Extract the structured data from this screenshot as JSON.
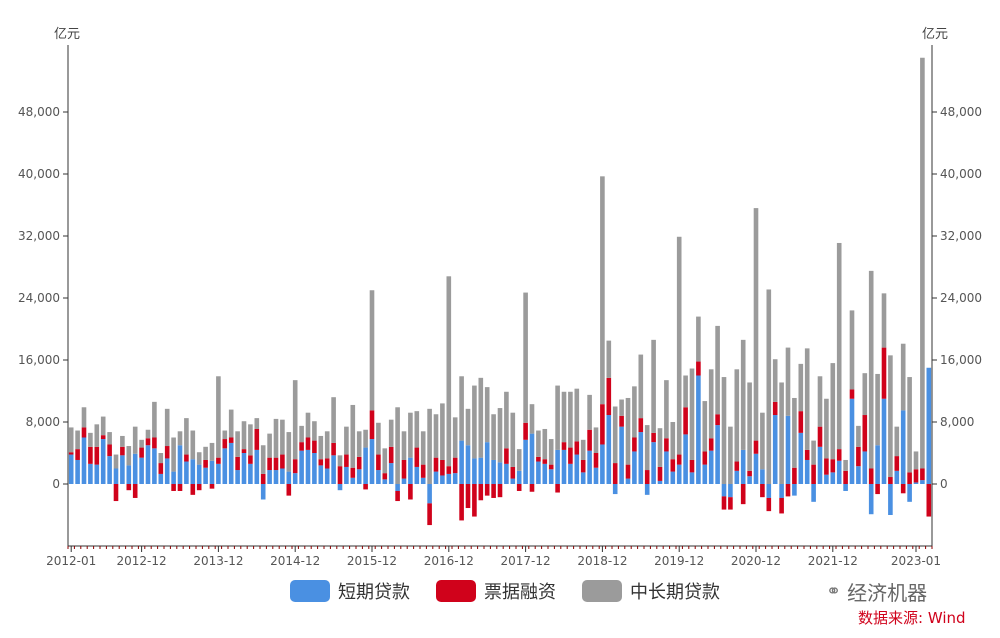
{
  "chart_data": {
    "type": "bar",
    "stacked": true,
    "left_unit": "亿元",
    "right_unit": "亿元",
    "y_ticks": [
      0,
      8000,
      16000,
      24000,
      32000,
      40000,
      48000
    ],
    "y_tick_labels": [
      "0",
      "8,000",
      "16,000",
      "24,000",
      "32,000",
      "40,000",
      "48,000"
    ],
    "ylim": [
      -8000,
      56000
    ],
    "x_tick_labels": [
      "2012-01",
      "2012-12",
      "2013-12",
      "2014-12",
      "2015-12",
      "2016-12",
      "2017-12",
      "2018-12",
      "2019-12",
      "2020-12",
      "2021-12",
      "2023-01"
    ],
    "x_tick_index": [
      0,
      11,
      23,
      35,
      47,
      59,
      71,
      83,
      95,
      107,
      119,
      132
    ],
    "colors": {
      "short": "#4a90e2",
      "bill": "#d0021b",
      "long": "#9b9b9b"
    },
    "series": [
      {
        "name": "短期贷款",
        "values": [
          3800,
          3100,
          6000,
          2600,
          2500,
          5800,
          3600,
          2000,
          3700,
          2400,
          3900,
          3400,
          5000,
          4600,
          1300,
          3300,
          1600,
          5000,
          2900,
          3200,
          2500,
          2100,
          3000,
          2600,
          4600,
          5300,
          1800,
          4000,
          2600,
          4400,
          -2000,
          1800,
          1800,
          2000,
          1600,
          1400,
          4300,
          4400,
          4000,
          2400,
          2000,
          3700,
          -800,
          2200,
          800,
          1900,
          4700,
          5800,
          1800,
          600,
          2700,
          -900,
          700,
          3400,
          2200,
          800,
          -2500,
          1600,
          1100,
          1300,
          1400,
          5600,
          5000,
          3300,
          3400,
          5400,
          3100,
          2800,
          2600,
          700,
          1700,
          5700,
          6500,
          2900,
          2600,
          1900,
          4400,
          4400,
          2600,
          3800,
          1500,
          4300,
          2100,
          5100,
          8900,
          -1300,
          7400,
          700,
          4200,
          6700,
          -1400,
          5400,
          400,
          4200,
          1600,
          2500,
          6400,
          1500,
          14000,
          2500,
          4300,
          7600,
          -1600,
          -1700,
          1700,
          4400,
          1000,
          3900,
          1900,
          -1800,
          8900,
          -1800,
          8800,
          -1500,
          6600,
          3100,
          -2300,
          4800,
          1200,
          1500,
          3000,
          -900,
          11000,
          2300,
          4200,
          -3900,
          5000,
          11000,
          -4000,
          1700,
          9500,
          -2300,
          200,
          500,
          15000
        ]
      },
      {
        "name": "票据融资",
        "values": [
          300,
          1400,
          1300,
          2200,
          2300,
          500,
          1500,
          -2200,
          1100,
          -800,
          -1800,
          1300,
          900,
          1400,
          1400,
          1600,
          -900,
          -900,
          900,
          -1400,
          -800,
          1000,
          -600,
          800,
          1200,
          700,
          1700,
          500,
          1100,
          2700,
          1300,
          1600,
          1600,
          1800,
          -1500,
          1800,
          1100,
          1600,
          1600,
          800,
          1300,
          1600,
          2300,
          1600,
          1300,
          1600,
          -700,
          3700,
          2000,
          800,
          2100,
          -1300,
          2400,
          -2000,
          2500,
          1700,
          -2800,
          1800,
          2000,
          1000,
          2000,
          -4700,
          -3100,
          -4200,
          -2100,
          -1500,
          -1800,
          -1700,
          2000,
          1500,
          -900,
          2200,
          -1000,
          600,
          600,
          600,
          -1100,
          1000,
          2100,
          1700,
          1600,
          2700,
          1900,
          5200,
          4800,
          2700,
          1400,
          1800,
          1800,
          1800,
          1800,
          1200,
          1800,
          1700,
          1600,
          1300,
          3500,
          1600,
          1800,
          1700,
          1600,
          1400,
          -1700,
          -1600,
          1200,
          -2600,
          700,
          1700,
          -1700,
          -1700,
          1700,
          -2000,
          -1600,
          2100,
          2800,
          1300,
          2500,
          2600,
          2100,
          1700,
          1500,
          1700,
          1200,
          2500,
          4700,
          2000,
          -1300,
          6600,
          900,
          1900,
          -1200,
          1500,
          1700,
          1500,
          -4200
        ]
      },
      {
        "name": "中长期贷款",
        "values": [
          3200,
          2400,
          2600,
          1800,
          2900,
          2400,
          1600,
          1800,
          1400,
          2500,
          3500,
          1000,
          1100,
          4600,
          1300,
          4800,
          4400,
          1800,
          4700,
          3700,
          1600,
          1700,
          2300,
          10500,
          1100,
          3600,
          3300,
          3600,
          4000,
          1400,
          3700,
          3100,
          5000,
          4500,
          5100,
          10200,
          2100,
          3200,
          2500,
          3000,
          3500,
          5900,
          1400,
          3600,
          8100,
          3300,
          2300,
          15500,
          4100,
          3200,
          3500,
          9900,
          3700,
          5800,
          4700,
          4300,
          9700,
          5600,
          7300,
          24500,
          5200,
          8300,
          4700,
          9400,
          10300,
          7100,
          5900,
          7000,
          7300,
          7000,
          2800,
          16800,
          3800,
          3400,
          3900,
          3300,
          8300,
          6500,
          7200,
          6800,
          2600,
          4500,
          3300,
          29400,
          4800,
          7300,
          2100,
          8600,
          6600,
          8200,
          5800,
          12000,
          5000,
          7500,
          4800,
          28100,
          4100,
          11800,
          5800,
          6500,
          8900,
          11400,
          13800,
          7400,
          11900,
          14200,
          11400,
          30000,
          7300,
          25100,
          5500,
          13100,
          8800,
          9000,
          6100,
          13100,
          3100,
          6500,
          7700,
          12400,
          26600,
          1400,
          10200,
          2700,
          5400,
          25500,
          9200,
          7000,
          15700,
          3800,
          8600,
          12300,
          2300,
          53000
        ]
      }
    ]
  },
  "legend": {
    "items": [
      "短期贷款",
      "票据融资",
      "中长期贷款"
    ]
  },
  "watermark": {
    "text": "经济机器",
    "icon": "wechat-bubble-icon"
  },
  "source": {
    "text": "数据来源: Wind"
  }
}
